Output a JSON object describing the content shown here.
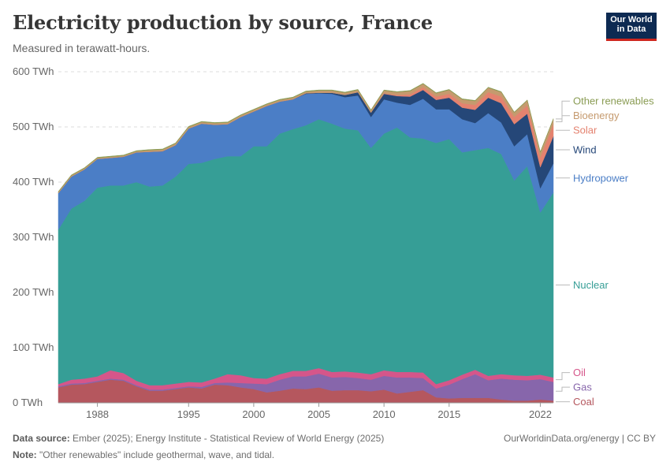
{
  "header": {
    "title": "Electricity production by source, France",
    "subtitle": "Measured in terawatt-hours."
  },
  "logo": {
    "line1": "Our World",
    "line2": "in Data",
    "bg_color": "#0d2a52",
    "accent_color": "#ce261e"
  },
  "footer": {
    "source_label": "Data source:",
    "source_text": "Ember (2025); Energy Institute - Statistical Review of World Energy (2025)",
    "note_label": "Note:",
    "note_text": "\"Other renewables\" include geothermal, wave, and tidal.",
    "credit": "OurWorldinData.org/energy | CC BY"
  },
  "chart_data": {
    "type": "area",
    "stacked": true,
    "title": "Electricity production by source, France",
    "ylabel": "TWh",
    "ylim": [
      0,
      600
    ],
    "xlim": [
      1985,
      2023
    ],
    "x_ticks": [
      "1988",
      "1995",
      "2000",
      "2005",
      "2010",
      "2015",
      "2022"
    ],
    "y_ticks": [
      "0 TWh",
      "100 TWh",
      "200 TWh",
      "300 TWh",
      "400 TWh",
      "500 TWh",
      "600 TWh"
    ],
    "grid": "horizontal-dashed",
    "legend": "right-end-labels",
    "x": [
      1985,
      1986,
      1987,
      1988,
      1989,
      1990,
      1991,
      1992,
      1993,
      1994,
      1995,
      1996,
      1997,
      1998,
      1999,
      2000,
      2001,
      2002,
      2003,
      2004,
      2005,
      2006,
      2007,
      2008,
      2009,
      2010,
      2011,
      2012,
      2013,
      2014,
      2015,
      2016,
      2017,
      2018,
      2019,
      2020,
      2021,
      2022,
      2023
    ],
    "series": [
      {
        "name": "Coal",
        "color": "#b5575e",
        "values": [
          28,
          33,
          34,
          38,
          42,
          40,
          30,
          22,
          22,
          25,
          28,
          26,
          33,
          32,
          28,
          25,
          19,
          22,
          26,
          25,
          28,
          22,
          23,
          23,
          21,
          24,
          17,
          20,
          23,
          10,
          8,
          9,
          9,
          9,
          6,
          4,
          4,
          6,
          4
        ]
      },
      {
        "name": "Gas",
        "color": "#8766ab",
        "values": [
          2,
          2,
          2,
          2,
          2,
          2,
          2,
          2,
          2,
          2,
          2,
          3,
          3,
          5,
          8,
          10,
          15,
          20,
          22,
          23,
          25,
          24,
          24,
          22,
          21,
          25,
          29,
          26,
          22,
          16,
          25,
          34,
          43,
          32,
          38,
          38,
          37,
          37,
          34
        ]
      },
      {
        "name": "Oil",
        "color": "#d5568a",
        "values": [
          4,
          7,
          8,
          8,
          15,
          12,
          8,
          8,
          8,
          8,
          8,
          8,
          8,
          15,
          14,
          10,
          10,
          10,
          10,
          10,
          10,
          10,
          10,
          10,
          10,
          10,
          10,
          10,
          10,
          8,
          8,
          8,
          8,
          8,
          8,
          8,
          8,
          8,
          8
        ]
      },
      {
        "name": "Nuclear",
        "color": "#369e96",
        "values": [
          280,
          310,
          322,
          342,
          335,
          340,
          360,
          360,
          362,
          375,
          395,
          398,
          398,
          395,
          397,
          420,
          421,
          436,
          438,
          445,
          451,
          450,
          440,
          439,
          410,
          429,
          443,
          425,
          424,
          437,
          437,
          403,
          398,
          413,
          399,
          353,
          380,
          294,
          335
        ]
      },
      {
        "name": "Hydropower",
        "color": "#4b7ec6",
        "values": [
          66,
          58,
          57,
          52,
          50,
          52,
          54,
          63,
          62,
          57,
          64,
          71,
          62,
          58,
          71,
          63,
          73,
          58,
          54,
          57,
          47,
          54,
          57,
          63,
          56,
          62,
          45,
          59,
          72,
          61,
          54,
          60,
          49,
          63,
          57,
          62,
          58,
          44,
          53
        ]
      },
      {
        "name": "Wind",
        "color": "#254778",
        "values": [
          0,
          0,
          0,
          0,
          0,
          0,
          0,
          0,
          0,
          0,
          0,
          0,
          0,
          0,
          0,
          0,
          0,
          0,
          0,
          1,
          1,
          2,
          4,
          6,
          8,
          10,
          12,
          15,
          16,
          17,
          21,
          21,
          24,
          28,
          35,
          40,
          37,
          38,
          49
        ]
      },
      {
        "name": "Solar",
        "color": "#e4826f",
        "values": [
          0,
          0,
          0,
          0,
          0,
          0,
          0,
          0,
          0,
          0,
          0,
          0,
          0,
          0,
          0,
          0,
          0,
          0,
          0,
          0,
          0,
          0,
          0,
          0,
          0,
          1,
          2,
          4,
          5,
          6,
          7,
          8,
          9,
          10,
          12,
          13,
          15,
          18,
          22
        ]
      },
      {
        "name": "Bioenergy",
        "color": "#c59a6e",
        "values": [
          2,
          2,
          2,
          2,
          2,
          2,
          2,
          3,
          3,
          3,
          3,
          3,
          3,
          3,
          3,
          3,
          3,
          3,
          3,
          3,
          4,
          4,
          4,
          4,
          4,
          5,
          5,
          6,
          6,
          6,
          7,
          7,
          7,
          8,
          8,
          8,
          9,
          9,
          9
        ]
      },
      {
        "name": "Other renewables",
        "color": "#8a9c54",
        "values": [
          1,
          1,
          1,
          1,
          1,
          1,
          1,
          1,
          1,
          1,
          1,
          1,
          1,
          1,
          1,
          1,
          1,
          1,
          1,
          1,
          1,
          1,
          1,
          1,
          1,
          1,
          1,
          1,
          1,
          1,
          1,
          1,
          1,
          1,
          1,
          1,
          1,
          1,
          1
        ]
      }
    ]
  }
}
